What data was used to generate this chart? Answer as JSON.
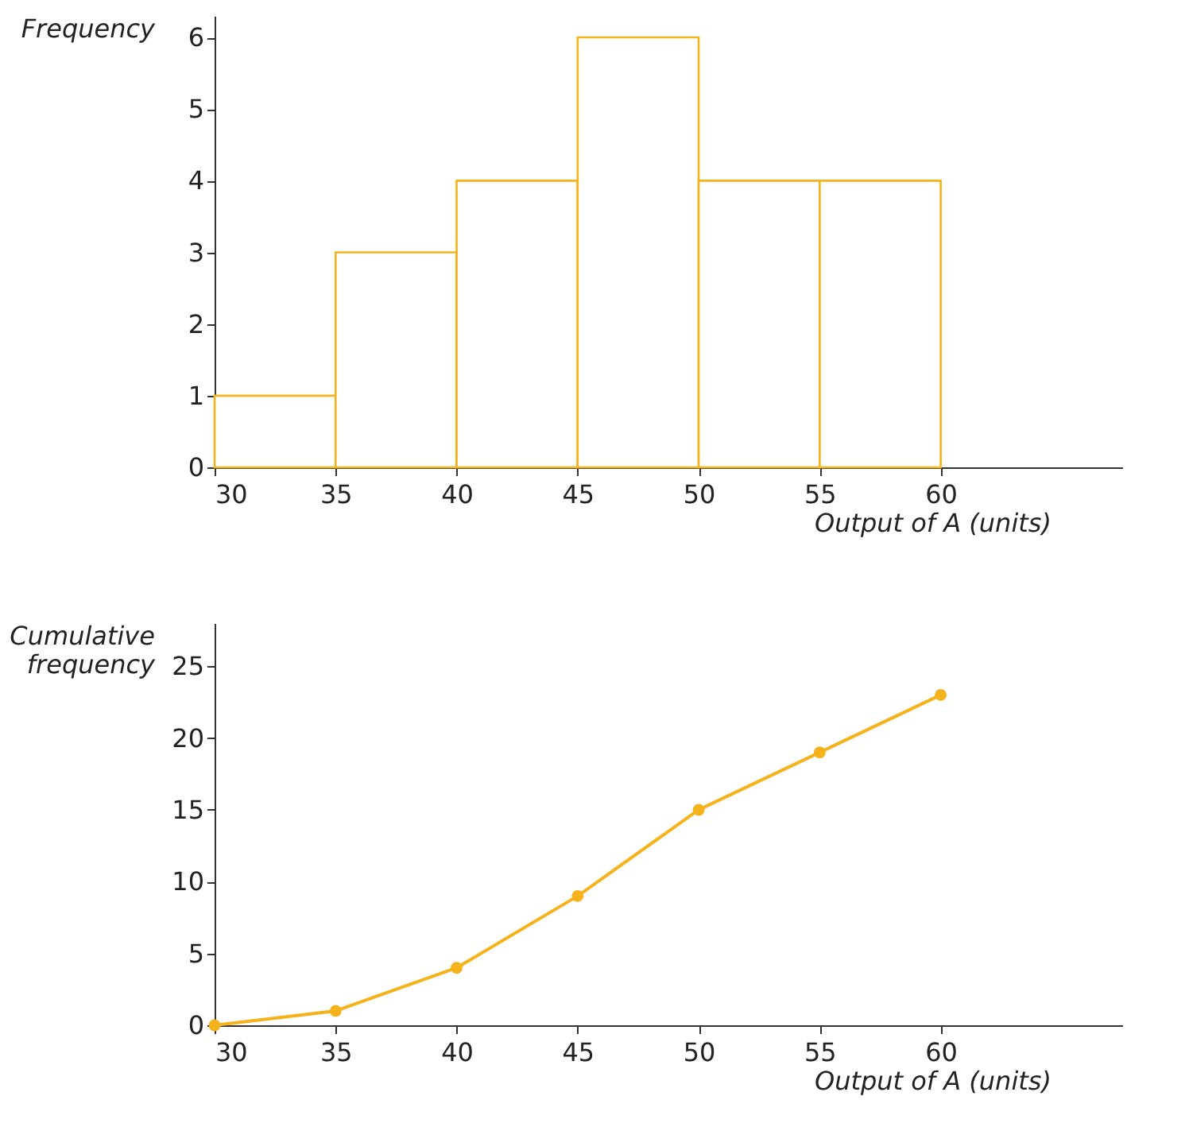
{
  "chart_data": [
    {
      "type": "histogram",
      "bins": [
        30,
        35,
        40,
        45,
        50,
        55,
        60
      ],
      "values": [
        1,
        3,
        4,
        6,
        4,
        4
      ],
      "color": "#f5b21a",
      "xlabel": "Output of A (units)",
      "ylabel": "Frequency",
      "xlim": [
        30,
        67.5
      ],
      "ylim": [
        0,
        6.3
      ],
      "xticks": [
        30,
        35,
        40,
        45,
        50,
        55,
        60
      ],
      "yticks": [
        0,
        1,
        2,
        3,
        4,
        5,
        6
      ],
      "grid": false
    },
    {
      "type": "line",
      "x": [
        30,
        35,
        40,
        45,
        50,
        55,
        60
      ],
      "series": [
        {
          "color": "#f5b21a",
          "values": [
            0,
            1,
            4,
            9,
            15,
            19,
            23
          ]
        }
      ],
      "marker": "circle",
      "line_style": "solid",
      "xlabel": "Output of A (units)",
      "ylabel": "Cumulative frequency",
      "xlim": [
        30,
        67.5
      ],
      "ylim": [
        0,
        28
      ],
      "xticks": [
        30,
        35,
        40,
        45,
        50,
        55,
        60
      ],
      "yticks": [
        0,
        5,
        10,
        15,
        20,
        25
      ],
      "grid": false
    }
  ]
}
